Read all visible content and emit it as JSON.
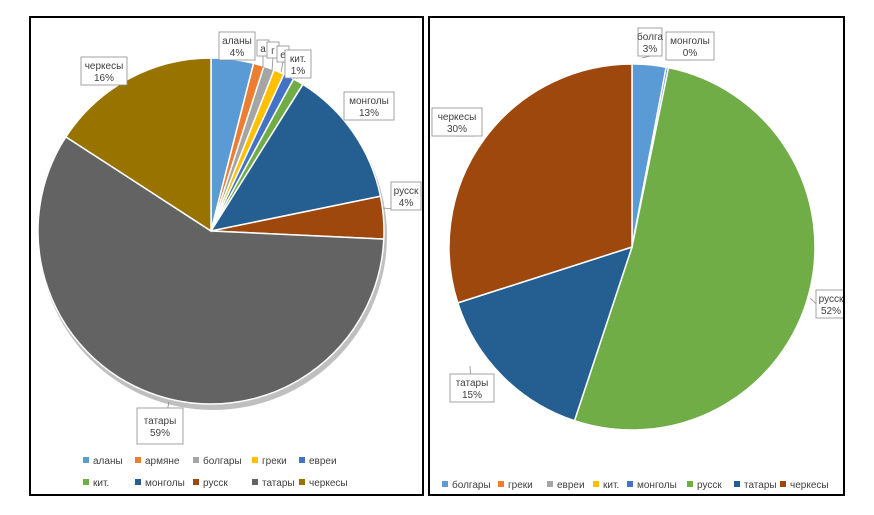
{
  "chart_data": [
    {
      "type": "pie",
      "title": "",
      "legend_position": "bottom",
      "slices": [
        {
          "name": "аланы",
          "value": 4,
          "label": "аланы\n4%",
          "color": "#5b9bd5"
        },
        {
          "name": "армяне",
          "value": 1,
          "label": "а",
          "color": "#ed7d31"
        },
        {
          "name": "болгары",
          "value": 1,
          "label": "",
          "color": "#a5a5a5"
        },
        {
          "name": "греки",
          "value": 1,
          "label": "г",
          "color": "#ffc000"
        },
        {
          "name": "евреи",
          "value": 1,
          "label": "е",
          "color": "#4472c4"
        },
        {
          "name": "кит.",
          "value": 1,
          "label": "кит.\n1%",
          "color": "#70ad47"
        },
        {
          "name": "монголы",
          "value": 13,
          "label": "монголы\n13%",
          "color": "#255e91"
        },
        {
          "name": "русск",
          "value": 4,
          "label": "русск\n4%",
          "color": "#9e480e"
        },
        {
          "name": "татары",
          "value": 59,
          "label": "татары\n59%",
          "color": "#636363"
        },
        {
          "name": "черкесы",
          "value": 16,
          "label": "черкесы\n16%",
          "color": "#997300"
        }
      ]
    },
    {
      "type": "pie",
      "title": "",
      "legend_position": "bottom",
      "slices": [
        {
          "name": "болгары",
          "value": 3,
          "label": "болга\n3%",
          "color": "#5b9bd5"
        },
        {
          "name": "греки",
          "value": 0,
          "label": "",
          "color": "#ed7d31"
        },
        {
          "name": "евреи",
          "value": 0,
          "label": "",
          "color": "#a5a5a5"
        },
        {
          "name": "кит.",
          "value": 0,
          "label": "",
          "color": "#ffc000"
        },
        {
          "name": "монголы",
          "value": 0.2,
          "label": "монголы\n0%",
          "color": "#4472c4"
        },
        {
          "name": "русск",
          "value": 52,
          "label": "русск\n52%",
          "color": "#70ad47"
        },
        {
          "name": "татары",
          "value": 15,
          "label": "татары\n15%",
          "color": "#255e91"
        },
        {
          "name": "черкесы",
          "value": 30,
          "label": "черкесы\n30%",
          "color": "#9e480e"
        }
      ]
    }
  ]
}
